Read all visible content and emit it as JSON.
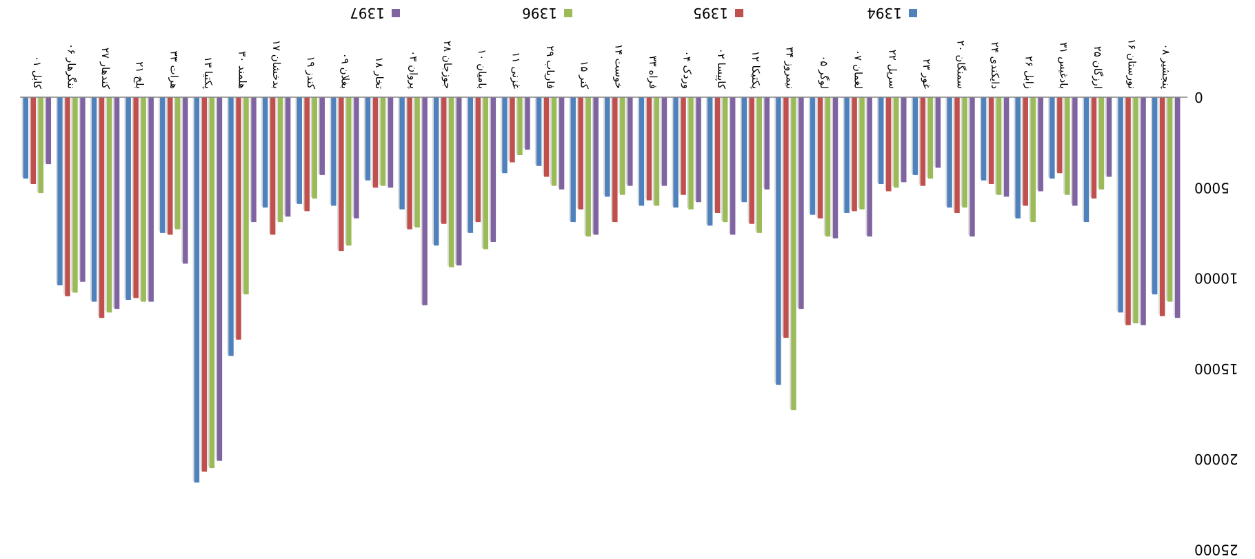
{
  "chart_data": {
    "type": "bar",
    "orientation": "rotated 180 degrees (upside-down)",
    "ylim": [
      0,
      25000
    ],
    "yticks": [
      "0",
      "5000",
      "10000",
      "15000",
      "20000",
      "25000"
    ],
    "grid": false,
    "legend_position": "top",
    "categories": [
      "۰۱ کابل",
      "۰۶ ننگرهار",
      "۲۷ کندهار",
      "۲۱ بلخ",
      "۳۳ هرات",
      "۱۳ پکتیا",
      "۳۰ هلمند",
      "۱۷ بدخشان",
      "۱۹ کندز",
      "۰۹ بغلان",
      "۱۸ تخار",
      "۰۳ پروان",
      "۲۸ جوزجان",
      "۱۰ بامیان",
      "۱۱ غزنی",
      "۲۹ فاریاب",
      "۱۵ کنر",
      "۱۴ خوست",
      "۳۳ فراه",
      "۰۴ وردک",
      "۰۲ کاپیسا",
      "۱۲ پکتیکا",
      "۳۴ نیمروز",
      "۰۵ لوگر",
      "۰۷ لغمان",
      "۲۲ سرپل",
      "۲۳ غور",
      "۲۰ سمنگان",
      "۲۴ دایکندی",
      "۲۶ زابل",
      "۳۱ بادغیس",
      "۲۵ ارزگان",
      "۱۶ نورستان",
      "۰۸ پنجشیر"
    ],
    "series": [
      {
        "name": "1394",
        "color": "#4F81BD",
        "values": [
          4500,
          10400,
          11300,
          11200,
          7500,
          21300,
          14300,
          6100,
          5900,
          6000,
          4600,
          6200,
          8200,
          7500,
          4200,
          3800,
          6900,
          5500,
          6000,
          6100,
          7100,
          5800,
          15900,
          6500,
          6400,
          4800,
          4300,
          6100,
          4600,
          6700,
          4500,
          6900,
          11900,
          10900
        ]
      },
      {
        "name": "1395",
        "color": "#C0504D",
        "values": [
          4800,
          11000,
          12200,
          11100,
          7600,
          20700,
          13400,
          7600,
          6300,
          8500,
          5000,
          7300,
          7000,
          6900,
          3600,
          4400,
          6200,
          6900,
          5700,
          5400,
          6400,
          7000,
          13300,
          6700,
          6300,
          5200,
          4900,
          6400,
          4800,
          6000,
          4200,
          5600,
          12600,
          12100
        ]
      },
      {
        "name": "1396",
        "color": "#9BBB59",
        "values": [
          5300,
          10800,
          11900,
          11300,
          7300,
          20500,
          10900,
          6900,
          5600,
          8200,
          4900,
          7200,
          9400,
          8400,
          3200,
          4900,
          7700,
          5400,
          6000,
          6200,
          6900,
          7500,
          17300,
          7700,
          6200,
          5000,
          4500,
          6100,
          5400,
          6900,
          5400,
          5100,
          12500,
          11300
        ]
      },
      {
        "name": "1397",
        "color": "#8064A2",
        "values": [
          3700,
          10200,
          11700,
          11300,
          9200,
          20100,
          6900,
          6600,
          4300,
          6700,
          5000,
          11500,
          9300,
          8000,
          2900,
          5100,
          7600,
          4900,
          4900,
          5800,
          7600,
          5100,
          11700,
          7800,
          7700,
          4700,
          3900,
          7700,
          5500,
          5200,
          6000,
          4400,
          12600,
          12200
        ]
      }
    ]
  }
}
